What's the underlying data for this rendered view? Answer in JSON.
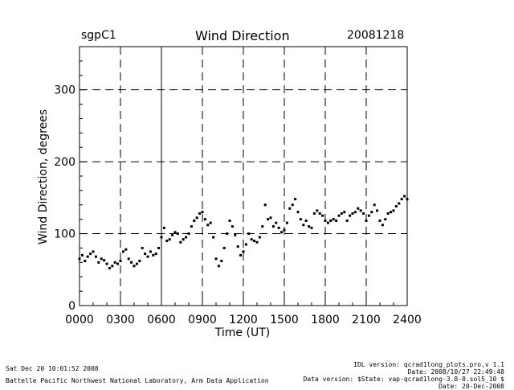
{
  "header": {
    "site": "sgpC1",
    "title": "Wind Direction",
    "date": "20081218"
  },
  "footer": {
    "left": [
      "Sat Dec 20 10:01:52 2008",
      "Battelle Pacific Northwest National Laboratory, Arm Data Application"
    ],
    "right": [
      "IDL version: qcrad1long_plots.pro,v 1.1",
      "Date: 2008/10/27 22:49:48",
      "Data version: $State: vap-qcrad1long-3.8-0.sol5_10 $",
      "Date: 20-Dec-2008"
    ]
  },
  "chart_data": {
    "type": "scatter",
    "title": "Wind Direction",
    "xlabel": "Time (UT)",
    "ylabel": "Wind Direction, degrees",
    "xlim": [
      0,
      2400
    ],
    "ylim": [
      0,
      360
    ],
    "x_ticks": [
      "0000",
      "0300",
      "0600",
      "0900",
      "1200",
      "1500",
      "1800",
      "2100",
      "2400"
    ],
    "x_tick_values": [
      0,
      300,
      600,
      900,
      1200,
      1500,
      1800,
      2100,
      2400
    ],
    "y_ticks": [
      0,
      100,
      200,
      300
    ],
    "grid_x": [
      300,
      900,
      1200,
      1500,
      1800,
      2100
    ],
    "grid_y": [
      100,
      200,
      300
    ],
    "solid_lines_x": [
      600
    ],
    "series": [
      {
        "name": "wind direction",
        "x": [
          0,
          20,
          40,
          60,
          80,
          100,
          120,
          140,
          160,
          180,
          200,
          220,
          240,
          260,
          280,
          300,
          320,
          340,
          360,
          380,
          400,
          420,
          440,
          460,
          480,
          500,
          520,
          540,
          560,
          580,
          600,
          620,
          640,
          660,
          680,
          700,
          720,
          740,
          760,
          780,
          800,
          820,
          840,
          860,
          880,
          900,
          920,
          940,
          960,
          980,
          1000,
          1020,
          1040,
          1060,
          1080,
          1100,
          1120,
          1140,
          1160,
          1180,
          1200,
          1220,
          1240,
          1260,
          1280,
          1300,
          1320,
          1340,
          1360,
          1380,
          1400,
          1420,
          1440,
          1460,
          1480,
          1500,
          1520,
          1540,
          1560,
          1580,
          1600,
          1620,
          1640,
          1660,
          1680,
          1700,
          1720,
          1740,
          1760,
          1780,
          1800,
          1820,
          1840,
          1860,
          1880,
          1900,
          1920,
          1940,
          1960,
          1980,
          2000,
          2020,
          2040,
          2060,
          2080,
          2100,
          2120,
          2140,
          2160,
          2180,
          2200,
          2220,
          2240,
          2260,
          2280,
          2300,
          2320,
          2340,
          2360,
          2380,
          2400
        ],
        "values": [
          65,
          70,
          62,
          68,
          72,
          75,
          68,
          60,
          65,
          63,
          58,
          52,
          55,
          60,
          58,
          62,
          75,
          78,
          65,
          60,
          55,
          58,
          62,
          80,
          72,
          68,
          75,
          70,
          72,
          80,
          95,
          108,
          90,
          92,
          98,
          102,
          100,
          88,
          92,
          95,
          100,
          110,
          118,
          122,
          128,
          130,
          120,
          112,
          115,
          95,
          65,
          55,
          62,
          80,
          100,
          118,
          110,
          98,
          82,
          70,
          75,
          85,
          100,
          92,
          90,
          88,
          95,
          110,
          140,
          120,
          122,
          110,
          115,
          108,
          102,
          105,
          115,
          135,
          140,
          148,
          130,
          120,
          112,
          118,
          110,
          108,
          128,
          132,
          128,
          125,
          118,
          115,
          118,
          120,
          118,
          125,
          128,
          130,
          118,
          125,
          128,
          130,
          135,
          132,
          128,
          118,
          125,
          130,
          140,
          132,
          118,
          112,
          120,
          128,
          130,
          132,
          138,
          142,
          148,
          152,
          148
        ]
      }
    ]
  }
}
